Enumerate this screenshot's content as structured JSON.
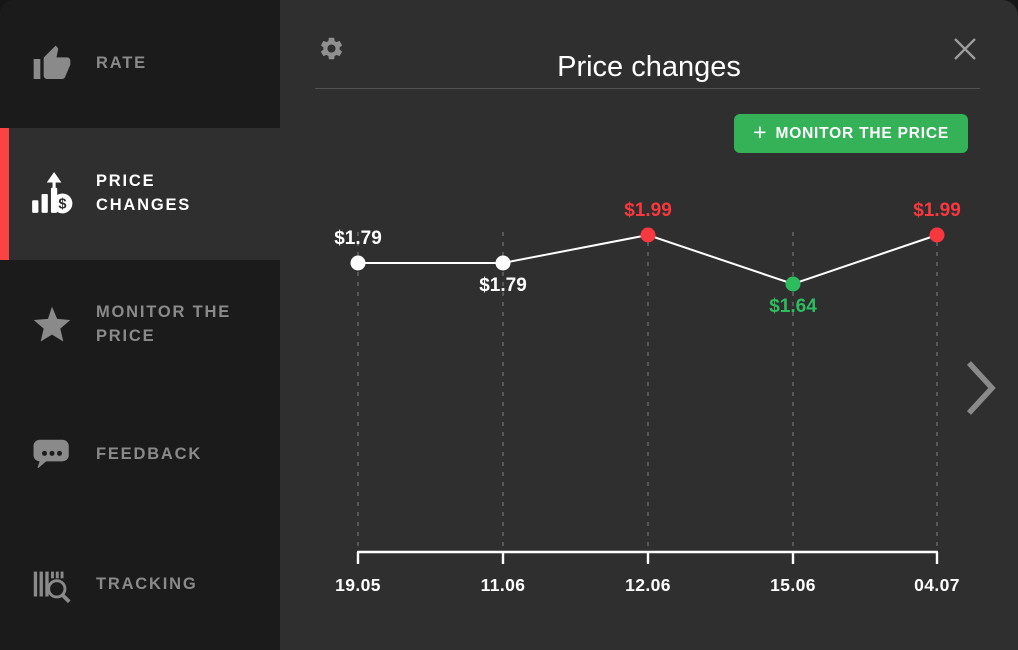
{
  "sidebar": {
    "active_accent_color": "#fb4343",
    "items": [
      {
        "label": "RATE",
        "icon": "thumbs-up-icon",
        "active": false
      },
      {
        "label": "PRICE\nCHANGES",
        "icon": "price-changes-icon",
        "active": true
      },
      {
        "label": "MONITOR THE\nPRICE",
        "icon": "star-icon",
        "active": false
      },
      {
        "label": "FEEDBACK",
        "icon": "chat-bubble-icon",
        "active": false
      },
      {
        "label": "TRACKING",
        "icon": "barcode-search-icon",
        "active": false
      }
    ]
  },
  "header": {
    "title": "Price changes",
    "left_icon": "gear-icon",
    "right_icon": "close-icon"
  },
  "monitor_button": {
    "plus": "+",
    "label": "MONITOR THE PRICE",
    "color": "#35b157"
  },
  "chart_data": {
    "type": "line",
    "title": "Price changes",
    "categories": [
      "19.05",
      "11.06",
      "12.06",
      "15.06",
      "04.07"
    ],
    "values": [
      1.79,
      1.79,
      1.99,
      1.64,
      1.99
    ],
    "points": [
      {
        "date": "19.05",
        "price_label": "$1.79",
        "value": 1.79,
        "color": "#ffffff",
        "label_position": "above"
      },
      {
        "date": "11.06",
        "price_label": "$1.79",
        "value": 1.79,
        "color": "#ffffff",
        "label_position": "below"
      },
      {
        "date": "12.06",
        "price_label": "$1.99",
        "value": 1.99,
        "color": "#f8383e",
        "label_position": "above"
      },
      {
        "date": "15.06",
        "price_label": "$1.64",
        "value": 1.64,
        "color": "#2ebd5e",
        "label_position": "below"
      },
      {
        "date": "04.07",
        "price_label": "$1.99",
        "value": 1.99,
        "color": "#f8383e",
        "label_position": "above"
      }
    ],
    "line_color": "#ffffff",
    "grid": "vertical-dashed",
    "grid_color": "#5c5c5c",
    "axis_color": "#ffffff",
    "legend": "none"
  },
  "pagination": {
    "next_icon": "chevron-right-icon"
  }
}
